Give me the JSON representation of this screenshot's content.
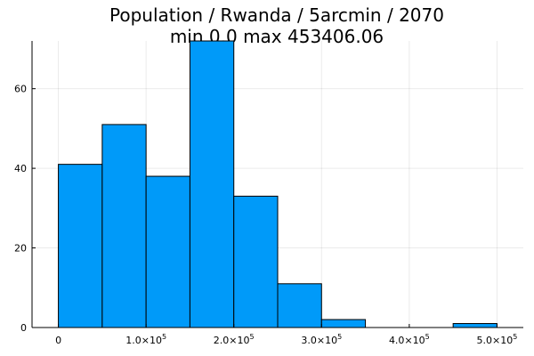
{
  "chart_data": {
    "type": "bar",
    "title_line1": "Population / Rwanda / 5arcmin / 2070",
    "title_line2": "min 0.0  max 453406.06",
    "xlabel": "",
    "ylabel": "",
    "bin_width": 50000,
    "bins": [
      {
        "start": 0,
        "end": 50000,
        "count": 41
      },
      {
        "start": 50000,
        "end": 100000,
        "count": 51
      },
      {
        "start": 100000,
        "end": 150000,
        "count": 38
      },
      {
        "start": 150000,
        "end": 200000,
        "count": 72
      },
      {
        "start": 200000,
        "end": 250000,
        "count": 33
      },
      {
        "start": 250000,
        "end": 300000,
        "count": 11
      },
      {
        "start": 300000,
        "end": 350000,
        "count": 2
      },
      {
        "start": 350000,
        "end": 400000,
        "count": 0
      },
      {
        "start": 400000,
        "end": 450000,
        "count": 0
      },
      {
        "start": 450000,
        "end": 500000,
        "count": 1
      }
    ],
    "xlim": [
      -30000,
      530000
    ],
    "ylim": [
      0,
      72
    ],
    "x_ticks": [
      {
        "value": 0,
        "label": "0",
        "exp": ""
      },
      {
        "value": 100000,
        "label": "1.0×10",
        "exp": "5"
      },
      {
        "value": 200000,
        "label": "2.0×10",
        "exp": "5"
      },
      {
        "value": 300000,
        "label": "3.0×10",
        "exp": "5"
      },
      {
        "value": 400000,
        "label": "4.0×10",
        "exp": "5"
      },
      {
        "value": 500000,
        "label": "5.0×10",
        "exp": "5"
      }
    ],
    "y_ticks": [
      {
        "value": 0,
        "label": "0"
      },
      {
        "value": 20,
        "label": "20"
      },
      {
        "value": 40,
        "label": "40"
      },
      {
        "value": 60,
        "label": "60"
      }
    ],
    "bar_color": "#009af9",
    "grid": true,
    "legend": "none"
  }
}
